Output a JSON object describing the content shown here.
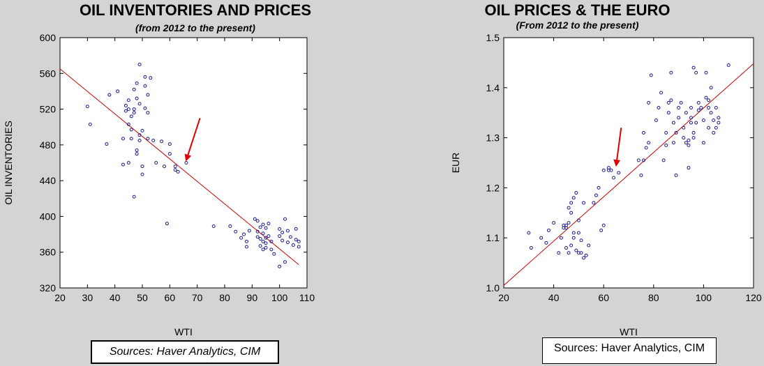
{
  "chart_data": [
    {
      "type": "scatter",
      "title": "OIL INVENTORIES AND PRICES",
      "subtitle": "(from 2012 to the present)",
      "xlabel": "WTI",
      "ylabel": "OIL INVENTORIES",
      "xlim": [
        20,
        110
      ],
      "ylim": [
        320,
        600
      ],
      "xticks": [
        20,
        30,
        40,
        50,
        60,
        70,
        80,
        90,
        100,
        110
      ],
      "yticks": [
        320,
        360,
        400,
        440,
        480,
        520,
        560,
        600
      ],
      "grid": false,
      "marker_color": "#1c1c8c",
      "fit_line": {
        "color": "#cc0000",
        "x": [
          20,
          107
        ],
        "y": [
          565,
          346
        ]
      },
      "annotation_arrow": {
        "color": "#e00000",
        "from": [
          71,
          510
        ],
        "to": [
          66,
          463
        ]
      },
      "points": [
        [
          30,
          523
        ],
        [
          31,
          503
        ],
        [
          37,
          481
        ],
        [
          38,
          536
        ],
        [
          41,
          540
        ],
        [
          43,
          487
        ],
        [
          43,
          458
        ],
        [
          44,
          518
        ],
        [
          44,
          524
        ],
        [
          45,
          520
        ],
        [
          45,
          530
        ],
        [
          45,
          503
        ],
        [
          45,
          460
        ],
        [
          46,
          487
        ],
        [
          46,
          497
        ],
        [
          46,
          512
        ],
        [
          47,
          542
        ],
        [
          47,
          516
        ],
        [
          47,
          520
        ],
        [
          47,
          422
        ],
        [
          48,
          549
        ],
        [
          48,
          532
        ],
        [
          48,
          474
        ],
        [
          48,
          470
        ],
        [
          49,
          526
        ],
        [
          49,
          491
        ],
        [
          49,
          485
        ],
        [
          49,
          570
        ],
        [
          50,
          496
        ],
        [
          50,
          456
        ],
        [
          50,
          447
        ],
        [
          51,
          556
        ],
        [
          51,
          546
        ],
        [
          51,
          521
        ],
        [
          52,
          516
        ],
        [
          52,
          536
        ],
        [
          52,
          487
        ],
        [
          53,
          555
        ],
        [
          54,
          485
        ],
        [
          55,
          460
        ],
        [
          57,
          484
        ],
        [
          58,
          456
        ],
        [
          59,
          392
        ],
        [
          60,
          470
        ],
        [
          60,
          481
        ],
        [
          62,
          456
        ],
        [
          62,
          452
        ],
        [
          63,
          450
        ],
        [
          66,
          460
        ],
        [
          76,
          389
        ],
        [
          82,
          389
        ],
        [
          84,
          383
        ],
        [
          86,
          376
        ],
        [
          87,
          380
        ],
        [
          88,
          366
        ],
        [
          88,
          372
        ],
        [
          89,
          384
        ],
        [
          91,
          397
        ],
        [
          92,
          395
        ],
        [
          92,
          383
        ],
        [
          92,
          377
        ],
        [
          93,
          388
        ],
        [
          93,
          375
        ],
        [
          93,
          367
        ],
        [
          94,
          372
        ],
        [
          94,
          381
        ],
        [
          94,
          363
        ],
        [
          94,
          391
        ],
        [
          95,
          387
        ],
        [
          95,
          365
        ],
        [
          95,
          370
        ],
        [
          95,
          376
        ],
        [
          96,
          378
        ],
        [
          96,
          392
        ],
        [
          97,
          363
        ],
        [
          97,
          372
        ],
        [
          98,
          358
        ],
        [
          100,
          386
        ],
        [
          100,
          378
        ],
        [
          100,
          344
        ],
        [
          101,
          373
        ],
        [
          101,
          382
        ],
        [
          102,
          397
        ],
        [
          102,
          349
        ],
        [
          103,
          384
        ],
        [
          103,
          371
        ],
        [
          104,
          377
        ],
        [
          105,
          368
        ],
        [
          106,
          386
        ],
        [
          106,
          374
        ],
        [
          107,
          372
        ],
        [
          107,
          366
        ]
      ]
    },
    {
      "type": "scatter",
      "title": "OIL PRICES & THE EURO",
      "subtitle": "(From 2012 to the present)",
      "xlabel": "WTI",
      "ylabel": "EUR",
      "xlim": [
        20,
        120
      ],
      "ylim": [
        1.0,
        1.5
      ],
      "xticks": [
        20,
        40,
        60,
        80,
        100,
        120
      ],
      "yticks": [
        1.0,
        1.1,
        1.2,
        1.3,
        1.4,
        1.5
      ],
      "grid": false,
      "marker_color": "#1c1c8c",
      "fit_line": {
        "color": "#cc0000",
        "x": [
          20,
          120
        ],
        "y": [
          1.005,
          1.448
        ]
      },
      "annotation_arrow": {
        "color": "#e00000",
        "from": [
          67,
          1.32
        ],
        "to": [
          65,
          1.245
        ]
      },
      "points": [
        [
          30,
          1.11
        ],
        [
          31,
          1.08
        ],
        [
          35,
          1.1
        ],
        [
          37,
          1.09
        ],
        [
          38,
          1.115
        ],
        [
          40,
          1.13
        ],
        [
          42,
          1.07
        ],
        [
          43,
          1.1
        ],
        [
          44,
          1.12
        ],
        [
          44,
          1.125
        ],
        [
          45,
          1.12
        ],
        [
          45,
          1.125
        ],
        [
          45,
          1.08
        ],
        [
          46,
          1.13
        ],
        [
          46,
          1.16
        ],
        [
          46,
          1.07
        ],
        [
          47,
          1.15
        ],
        [
          47,
          1.085
        ],
        [
          47,
          1.17
        ],
        [
          48,
          1.11
        ],
        [
          48,
          1.18
        ],
        [
          48,
          1.1
        ],
        [
          49,
          1.19
        ],
        [
          49,
          1.075
        ],
        [
          50,
          1.11
        ],
        [
          50,
          1.07
        ],
        [
          50,
          1.135
        ],
        [
          51,
          1.095
        ],
        [
          51,
          1.07
        ],
        [
          52,
          1.06
        ],
        [
          52,
          1.17
        ],
        [
          53,
          1.065
        ],
        [
          54,
          1.085
        ],
        [
          56,
          1.17
        ],
        [
          57,
          1.185
        ],
        [
          58,
          1.2
        ],
        [
          59,
          1.115
        ],
        [
          60,
          1.125
        ],
        [
          60,
          1.235
        ],
        [
          62,
          1.235
        ],
        [
          62,
          1.24
        ],
        [
          63,
          1.235
        ],
        [
          64,
          1.22
        ],
        [
          66,
          1.23
        ],
        [
          74,
          1.255
        ],
        [
          75,
          1.225
        ],
        [
          76,
          1.255
        ],
        [
          76,
          1.31
        ],
        [
          77,
          1.28
        ],
        [
          78,
          1.37
        ],
        [
          78,
          1.29
        ],
        [
          79,
          1.425
        ],
        [
          81,
          1.335
        ],
        [
          82,
          1.36
        ],
        [
          83,
          1.39
        ],
        [
          84,
          1.255
        ],
        [
          85,
          1.31
        ],
        [
          85,
          1.285
        ],
        [
          86,
          1.35
        ],
        [
          86,
          1.37
        ],
        [
          87,
          1.375
        ],
        [
          87,
          1.43
        ],
        [
          88,
          1.29
        ],
        [
          88,
          1.33
        ],
        [
          89,
          1.225
        ],
        [
          89,
          1.31
        ],
        [
          90,
          1.36
        ],
        [
          90,
          1.34
        ],
        [
          91,
          1.37
        ],
        [
          92,
          1.3
        ],
        [
          92,
          1.32
        ],
        [
          93,
          1.29
        ],
        [
          93,
          1.35
        ],
        [
          94,
          1.295
        ],
        [
          94,
          1.285
        ],
        [
          94,
          1.24
        ],
        [
          95,
          1.33
        ],
        [
          95,
          1.34
        ],
        [
          95,
          1.36
        ],
        [
          96,
          1.44
        ],
        [
          96,
          1.3
        ],
        [
          96,
          1.31
        ],
        [
          97,
          1.33
        ],
        [
          97,
          1.43
        ],
        [
          98,
          1.355
        ],
        [
          98,
          1.37
        ],
        [
          99,
          1.36
        ],
        [
          100,
          1.335
        ],
        [
          100,
          1.29
        ],
        [
          101,
          1.38
        ],
        [
          101,
          1.43
        ],
        [
          102,
          1.375
        ],
        [
          102,
          1.36
        ],
        [
          102,
          1.32
        ],
        [
          103,
          1.4
        ],
        [
          103,
          1.35
        ],
        [
          104,
          1.335
        ],
        [
          104,
          1.31
        ],
        [
          105,
          1.36
        ],
        [
          105,
          1.32
        ],
        [
          106,
          1.34
        ],
        [
          106,
          1.33
        ],
        [
          110,
          1.445
        ]
      ]
    }
  ],
  "sources": [
    "Sources:  Haver Analytics, CIM",
    "Sources:  Haver Analytics, CIM"
  ]
}
